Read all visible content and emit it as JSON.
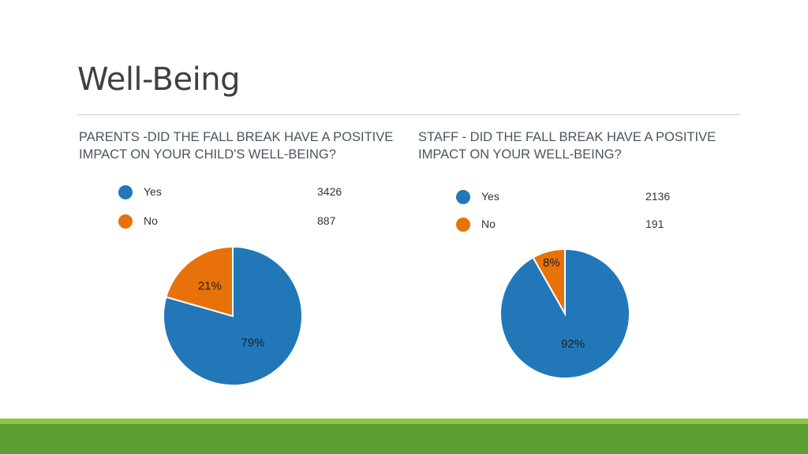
{
  "slide": {
    "title": "Well-Being"
  },
  "colors": {
    "yes": "#2277b9",
    "no": "#e8710a",
    "footer_light": "#8cc63f",
    "footer_dark": "#5c9e31"
  },
  "chart_data": [
    {
      "type": "pie",
      "title": "PARENTS -DID THE FALL BREAK HAVE A POSITIVE IMPACT ON YOUR CHILD'S WELL-BEING?",
      "categories": [
        "Yes",
        "No"
      ],
      "values": [
        3426,
        887
      ],
      "labels": [
        "79%",
        "21%"
      ],
      "colors": [
        "#2277b9",
        "#e8710a"
      ],
      "legend": "top"
    },
    {
      "type": "pie",
      "title": "STAFF - DID THE FALL BREAK HAVE A POSITIVE IMPACT ON YOUR WELL-BEING?",
      "categories": [
        "Yes",
        "No"
      ],
      "values": [
        2136,
        191
      ],
      "labels": [
        "92%",
        "8%"
      ],
      "colors": [
        "#2277b9",
        "#e8710a"
      ],
      "legend": "top"
    }
  ]
}
